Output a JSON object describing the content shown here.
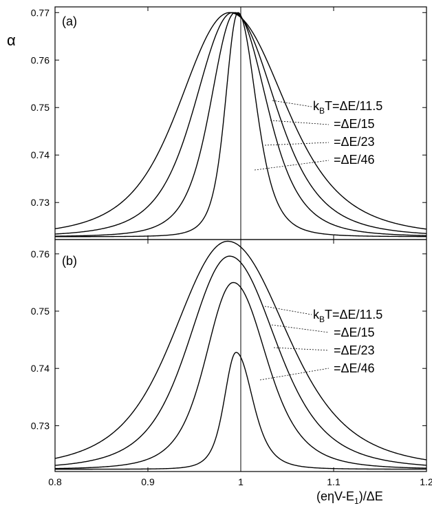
{
  "chart_data": [
    {
      "type": "line",
      "panel_label": "(a)",
      "ylabel": "α",
      "xlim": [
        0.8,
        1.2
      ],
      "ylim": [
        0.7222,
        0.7712
      ],
      "yticks": [
        0.73,
        0.74,
        0.75,
        0.76,
        0.77
      ],
      "ytick_labels": [
        "0.73",
        "0.74",
        "0.75",
        "0.76",
        "0.77"
      ],
      "vline_x": 1.0,
      "baseline": 0.7228,
      "series": [
        {
          "annotation": "k_BT=ΔE/11.5",
          "peak_x": 0.988,
          "peak": 0.77,
          "width_left": 0.063,
          "width_right": 0.07
        },
        {
          "annotation": "=ΔE/15",
          "peak_x": 0.991,
          "peak": 0.77,
          "width_left": 0.047,
          "width_right": 0.054
        },
        {
          "annotation": "=ΔE/23",
          "peak_x": 0.994,
          "peak": 0.77,
          "width_left": 0.031,
          "width_right": 0.04
        },
        {
          "annotation": "=ΔE/46",
          "peak_x": 0.997,
          "peak": 0.77,
          "width_left": 0.016,
          "width_right": 0.023
        }
      ]
    },
    {
      "type": "line",
      "panel_label": "(b)",
      "xlabel": "(eηV-E1)/ΔE",
      "xlim": [
        0.8,
        1.2
      ],
      "ylim": [
        0.722,
        0.7625
      ],
      "xticks": [
        0.8,
        0.9,
        1.0,
        1.1,
        1.2
      ],
      "xtick_labels": [
        "0.8",
        "0.9",
        "1",
        "1.1",
        "1.2"
      ],
      "yticks": [
        0.73,
        0.74,
        0.75,
        0.76
      ],
      "ytick_labels": [
        "0.73",
        "0.74",
        "0.75",
        "0.76"
      ],
      "vline_x": 1.0,
      "baseline": 0.7224,
      "series": [
        {
          "annotation": "k_BT=ΔE/11.5",
          "peak_x": 0.986,
          "peak": 0.7622,
          "width_left": 0.068,
          "width_right": 0.075
        },
        {
          "annotation": "=ΔE/15",
          "peak_x": 0.988,
          "peak": 0.7596,
          "width_left": 0.052,
          "width_right": 0.059
        },
        {
          "annotation": "=ΔE/23",
          "peak_x": 0.992,
          "peak": 0.755,
          "width_left": 0.035,
          "width_right": 0.042
        },
        {
          "annotation": "=ΔE/46",
          "peak_x": 0.995,
          "peak": 0.7428,
          "width_left": 0.015,
          "width_right": 0.021
        }
      ]
    }
  ]
}
